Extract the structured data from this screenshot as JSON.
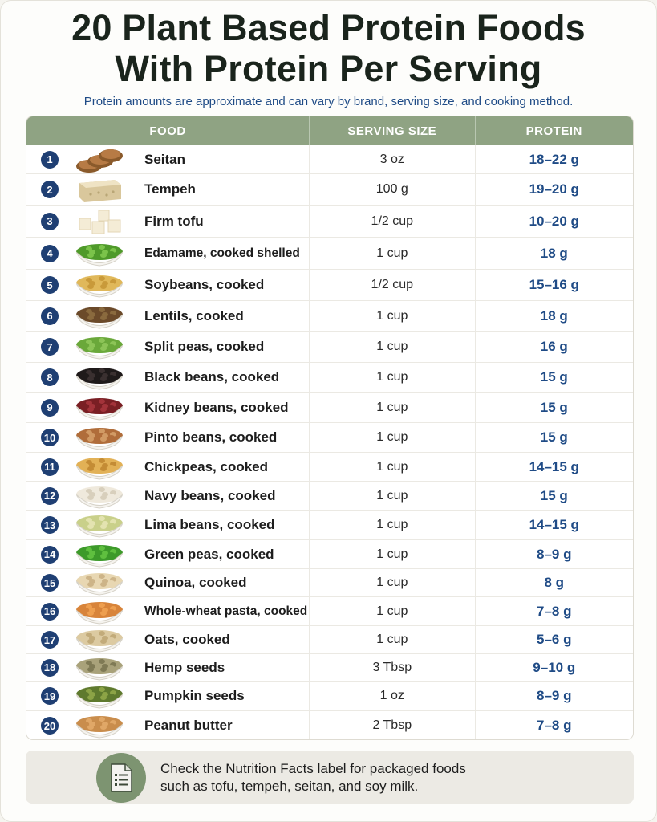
{
  "title_line1": "20 Plant Based Protein Foods",
  "title_line2": "With Protein Per Serving",
  "subtitle": "Protein amounts are approximate and can vary by brand, serving size, and cooking method.",
  "headers": {
    "food": "FOOD",
    "serving": "SERVING SIZE",
    "protein": "PROTEIN"
  },
  "colors": {
    "header_bg": "#8fa383",
    "accent_blue": "#1f4b86",
    "badge": "#1f3f73",
    "tip_icon_bg": "#7d9471"
  },
  "rows": [
    {
      "num": "1",
      "food": "Seitan",
      "serving": "3 oz",
      "protein": "18–22 g",
      "icon": "seitan-slices-icon"
    },
    {
      "num": "2",
      "food": "Tempeh",
      "serving": "100 g",
      "protein": "19–20 g",
      "icon": "tempeh-block-icon"
    },
    {
      "num": "3",
      "food": "Firm tofu",
      "serving": "1/2 cup",
      "protein": "10–20 g",
      "icon": "tofu-cubes-icon"
    },
    {
      "num": "4",
      "food": "Edamame, cooked shelled",
      "serving": "1 cup",
      "protein": "18 g",
      "icon": "edamame-bowl-icon"
    },
    {
      "num": "5",
      "food": "Soybeans, cooked",
      "serving": "1/2 cup",
      "protein": "15–16 g",
      "icon": "soybeans-bowl-icon"
    },
    {
      "num": "6",
      "food": "Lentils, cooked",
      "serving": "1 cup",
      "protein": "18 g",
      "icon": "lentils-bowl-icon"
    },
    {
      "num": "7",
      "food": "Split peas, cooked",
      "serving": "1 cup",
      "protein": "16 g",
      "icon": "split-peas-bowl-icon"
    },
    {
      "num": "8",
      "food": "Black beans, cooked",
      "serving": "1 cup",
      "protein": "15 g",
      "icon": "black-beans-bowl-icon"
    },
    {
      "num": "9",
      "food": "Kidney beans, cooked",
      "serving": "1 cup",
      "protein": "15 g",
      "icon": "kidney-beans-bowl-icon"
    },
    {
      "num": "10",
      "food": "Pinto beans, cooked",
      "serving": "1 cup",
      "protein": "15 g",
      "icon": "pinto-beans-bowl-icon"
    },
    {
      "num": "11",
      "food": "Chickpeas, cooked",
      "serving": "1 cup",
      "protein": "14–15 g",
      "icon": "chickpeas-bowl-icon"
    },
    {
      "num": "12",
      "food": "Navy beans, cooked",
      "serving": "1 cup",
      "protein": "15 g",
      "icon": "navy-beans-bowl-icon"
    },
    {
      "num": "13",
      "food": "Lima beans, cooked",
      "serving": "1 cup",
      "protein": "14–15 g",
      "icon": "lima-beans-bowl-icon"
    },
    {
      "num": "14",
      "food": "Green peas, cooked",
      "serving": "1 cup",
      "protein": "8–9 g",
      "icon": "green-peas-bowl-icon"
    },
    {
      "num": "15",
      "food": "Quinoa, cooked",
      "serving": "1 cup",
      "protein": "8 g",
      "icon": "quinoa-bowl-icon"
    },
    {
      "num": "16",
      "food": "Whole-wheat pasta, cooked",
      "serving": "1 cup",
      "protein": "7–8 g",
      "icon": "pasta-bowl-icon"
    },
    {
      "num": "17",
      "food": "Oats, cooked",
      "serving": "1 cup",
      "protein": "5–6 g",
      "icon": "oats-bowl-icon"
    },
    {
      "num": "18",
      "food": "Hemp seeds",
      "serving": "3 Tbsp",
      "protein": "9–10 g",
      "icon": "hemp-seeds-bowl-icon"
    },
    {
      "num": "19",
      "food": "Pumpkin seeds",
      "serving": "1 oz",
      "protein": "8–9 g",
      "icon": "pumpkin-seeds-bowl-icon"
    },
    {
      "num": "20",
      "food": "Peanut butter",
      "serving": "2 Tbsp",
      "protein": "7–8 g",
      "icon": "peanut-butter-bowl-icon"
    }
  ],
  "tip": {
    "line1": "Check the Nutrition Facts label for packaged foods",
    "line2": "such as tofu, tempeh, seitan, and soy milk.",
    "icon": "document-list-icon"
  }
}
